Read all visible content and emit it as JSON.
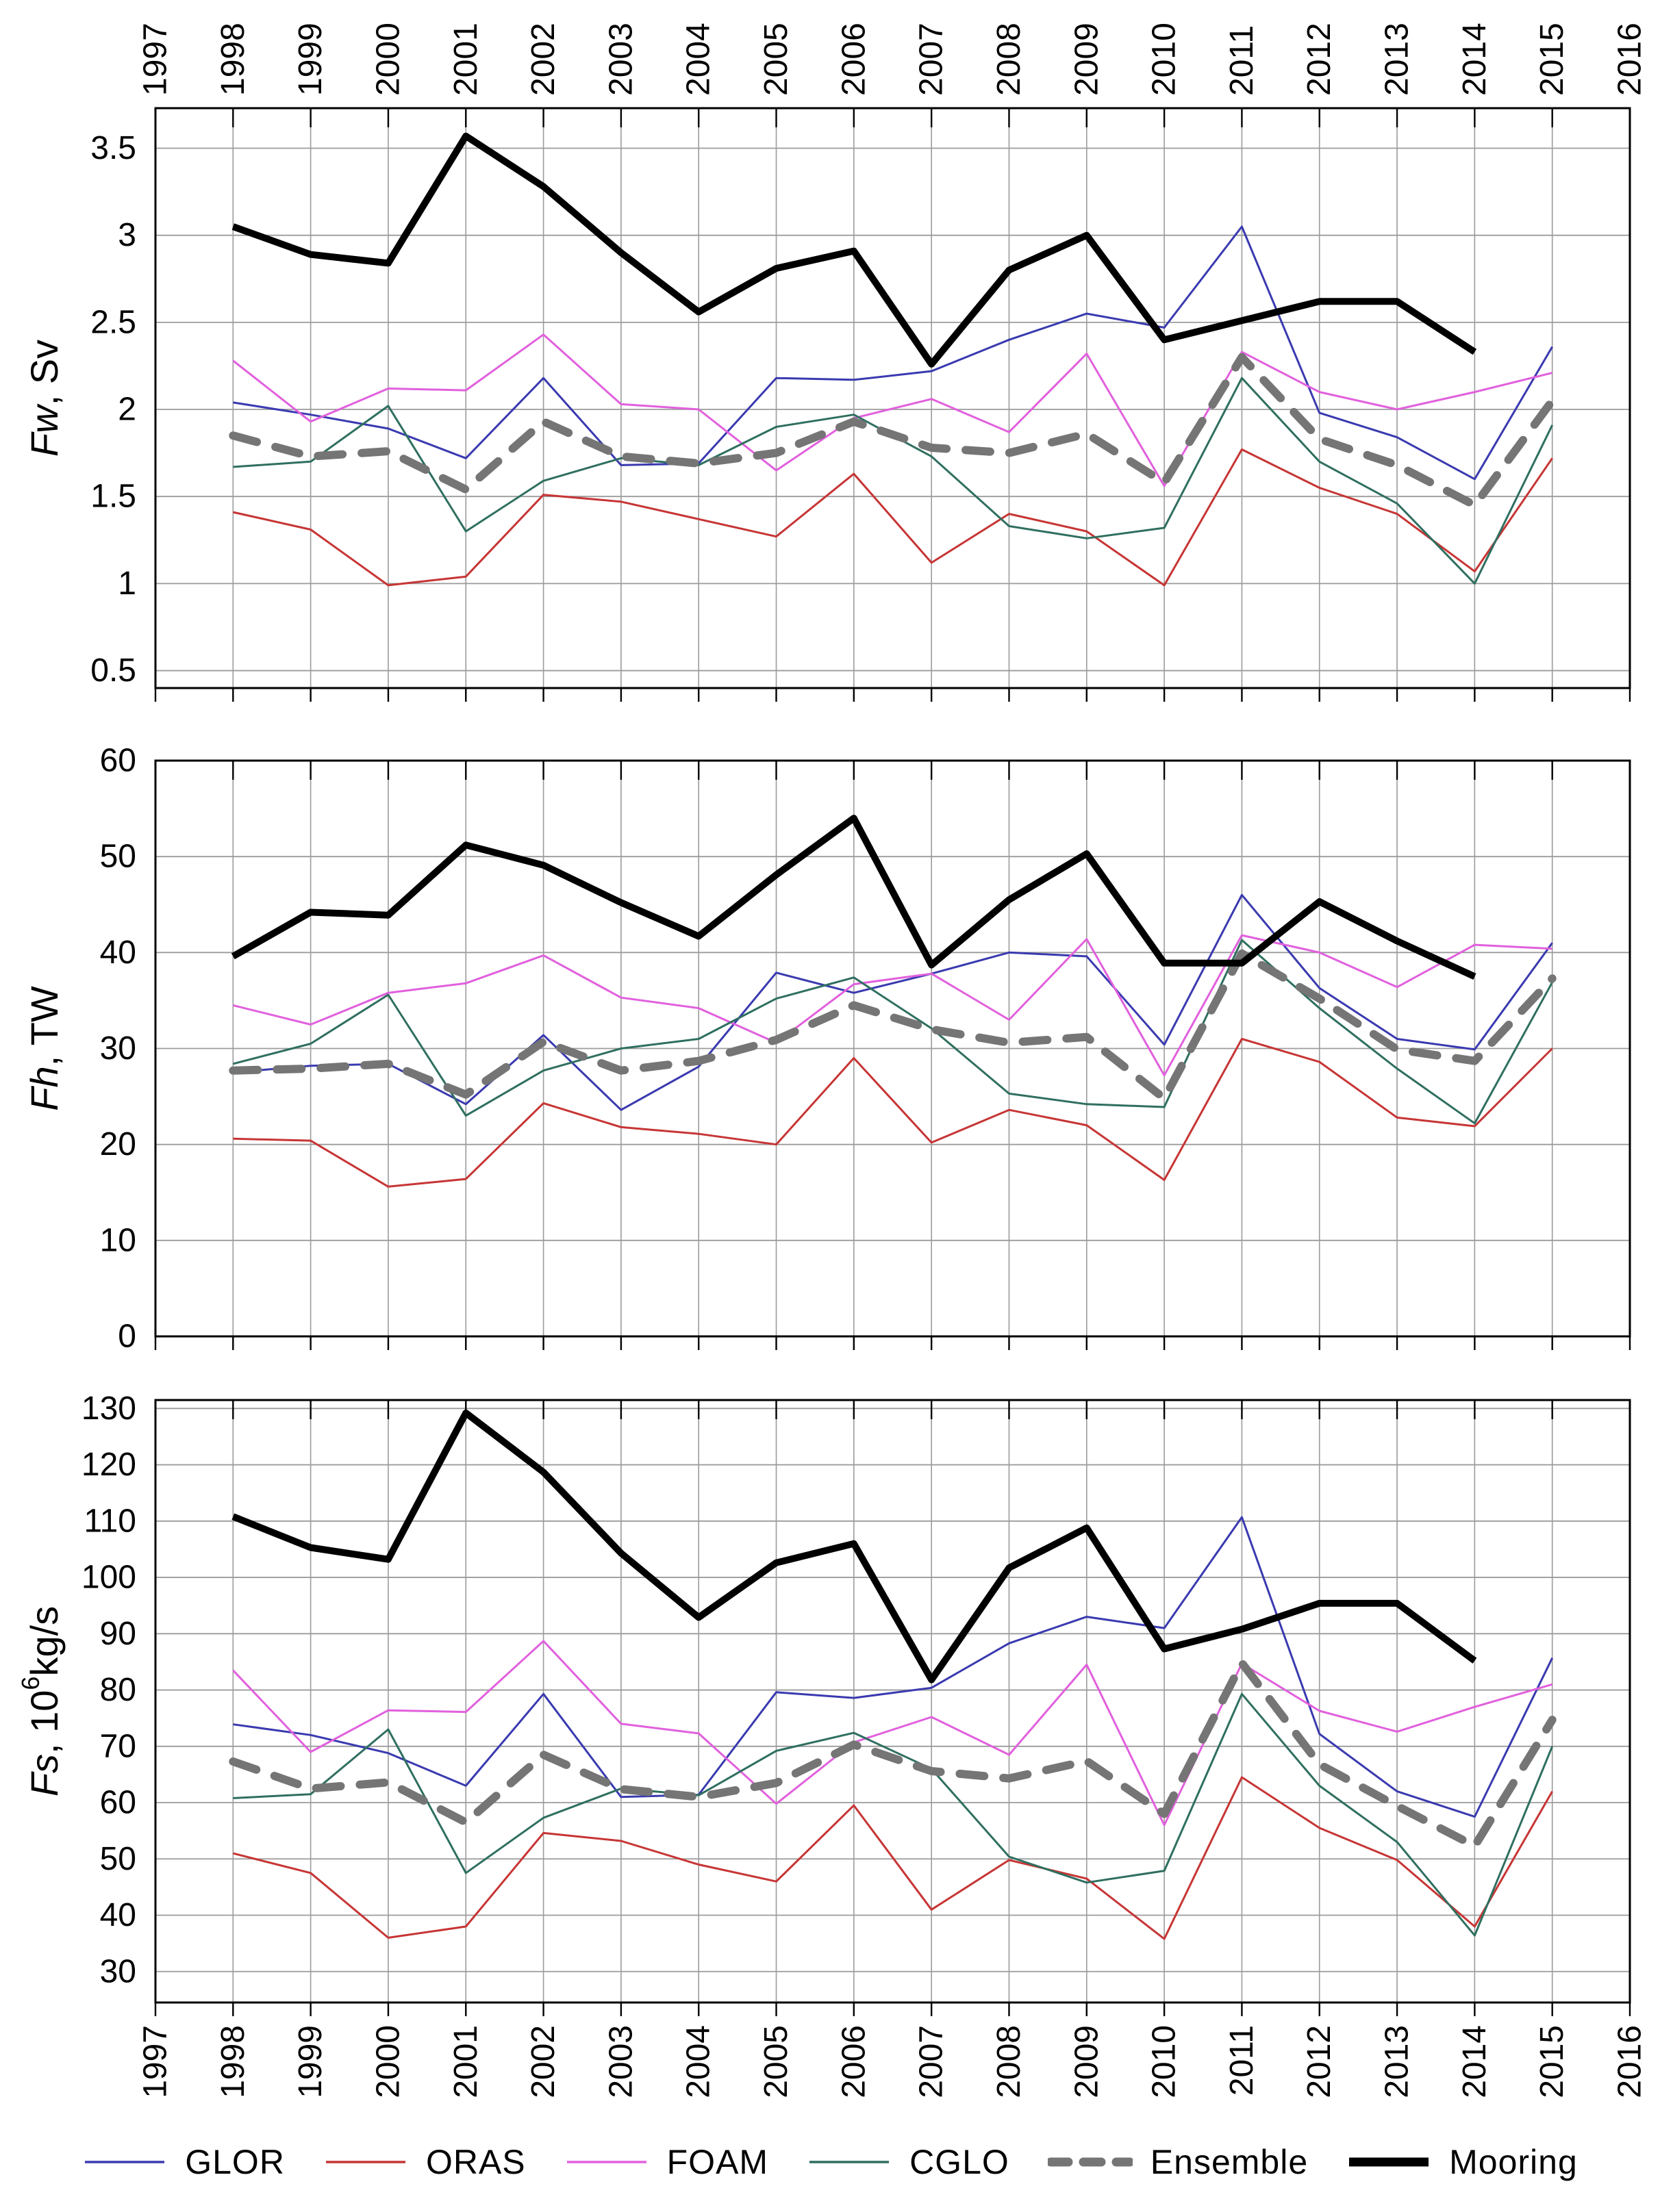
{
  "top_axis": {
    "years": [
      "1997",
      "1998",
      "1999",
      "2000",
      "2001",
      "2002",
      "2003",
      "2004",
      "2005",
      "2006",
      "2007",
      "2008",
      "2009",
      "2010",
      "2011",
      "2012",
      "2013",
      "2014",
      "2015",
      "2016"
    ]
  },
  "bottom_axis": {
    "years": [
      "1997",
      "1998",
      "1999",
      "2000",
      "2001",
      "2002",
      "2003",
      "2004",
      "2005",
      "2006",
      "2007",
      "2008",
      "2009",
      "2010",
      "2011",
      "2012",
      "2013",
      "2014",
      "2015",
      "2016"
    ]
  },
  "legend": {
    "entries": [
      {
        "id": "glor",
        "label": "GLOR",
        "color": "#3a3ab0",
        "style": "thin"
      },
      {
        "id": "oras",
        "label": "ORAS",
        "color": "#c73535",
        "style": "thin"
      },
      {
        "id": "foam",
        "label": "FOAM",
        "color": "#e160dd",
        "style": "thin"
      },
      {
        "id": "cglo",
        "label": "CGLO",
        "color": "#2f6f60",
        "style": "thin"
      },
      {
        "id": "ensemble",
        "label": "Ensemble",
        "color": "#757575",
        "style": "dashed"
      },
      {
        "id": "mooring",
        "label": "Mooring",
        "color": "#000000",
        "style": "thick"
      }
    ]
  },
  "chart_data": [
    {
      "type": "line",
      "title": "",
      "ylabel": "Fw, Sv",
      "ylabel_italic": "Fw",
      "ylabel_rest": ", Sv",
      "ylabel_sup": "",
      "ylabel_rest2": "",
      "ylim": [
        0.4,
        3.73
      ],
      "ytick_labels": [
        "0.5",
        "1",
        "1.5",
        "2",
        "2.5",
        "3",
        "3.5"
      ],
      "yticks": [
        0.5,
        1,
        1.5,
        2,
        2.5,
        3,
        3.5
      ],
      "x": [
        1998,
        1999,
        2000,
        2001,
        2002,
        2003,
        2004,
        2005,
        2006,
        2007,
        2008,
        2009,
        2010,
        2011,
        2012,
        2013,
        2014,
        2015
      ],
      "grid": true,
      "series": [
        {
          "name": "GLOR",
          "values": [
            2.04,
            1.97,
            1.89,
            1.72,
            2.18,
            1.68,
            1.69,
            2.18,
            2.17,
            2.22,
            2.4,
            2.55,
            2.47,
            3.05,
            1.98,
            1.84,
            1.6,
            2.36
          ]
        },
        {
          "name": "ORAS",
          "values": [
            1.41,
            1.31,
            0.99,
            1.04,
            1.51,
            1.47,
            1.37,
            1.27,
            1.63,
            1.12,
            1.4,
            1.3,
            0.99,
            1.77,
            1.55,
            1.4,
            1.07,
            1.72
          ]
        },
        {
          "name": "FOAM",
          "values": [
            2.28,
            1.93,
            2.12,
            2.11,
            2.43,
            2.03,
            2.0,
            1.65,
            1.95,
            2.06,
            1.87,
            2.32,
            1.56,
            2.33,
            2.1,
            2.0,
            2.1,
            2.21
          ]
        },
        {
          "name": "CGLO",
          "values": [
            1.67,
            1.7,
            2.02,
            1.3,
            1.59,
            1.72,
            1.68,
            1.9,
            1.97,
            1.73,
            1.33,
            1.26,
            1.32,
            2.18,
            1.7,
            1.46,
            1.0,
            1.91
          ]
        },
        {
          "name": "Ensemble",
          "values": [
            1.85,
            1.73,
            1.76,
            1.54,
            1.93,
            1.73,
            1.69,
            1.75,
            1.93,
            1.78,
            1.75,
            1.86,
            1.58,
            2.3,
            1.83,
            1.68,
            1.45,
            2.05
          ]
        },
        {
          "name": "Mooring",
          "values": [
            3.05,
            2.89,
            2.84,
            3.57,
            3.28,
            2.9,
            2.56,
            2.81,
            2.91,
            2.26,
            2.8,
            3.0,
            2.4,
            2.51,
            2.62,
            2.62,
            2.33,
            null
          ]
        }
      ]
    },
    {
      "type": "line",
      "title": "",
      "ylabel": "Fh, TW",
      "ylabel_italic": "Fh",
      "ylabel_rest": ", TW",
      "ylabel_sup": "",
      "ylabel_rest2": "",
      "ylim": [
        0,
        60
      ],
      "ytick_labels": [
        "0",
        "10",
        "20",
        "30",
        "40",
        "50",
        "60"
      ],
      "yticks": [
        0,
        10,
        20,
        30,
        40,
        50,
        60
      ],
      "x": [
        1998,
        1999,
        2000,
        2001,
        2002,
        2003,
        2004,
        2005,
        2006,
        2007,
        2008,
        2009,
        2010,
        2011,
        2012,
        2013,
        2014,
        2015
      ],
      "grid": true,
      "series": [
        {
          "name": "GLOR",
          "values": [
            27.5,
            28.2,
            28.4,
            24.2,
            31.4,
            23.6,
            28.1,
            37.9,
            35.8,
            37.8,
            40.0,
            39.6,
            30.4,
            46.0,
            36.3,
            31.0,
            29.9,
            41.0
          ]
        },
        {
          "name": "ORAS",
          "values": [
            20.6,
            20.4,
            15.6,
            16.4,
            24.3,
            21.8,
            21.1,
            20.0,
            29.0,
            20.2,
            23.6,
            22.0,
            16.3,
            31.0,
            28.6,
            22.8,
            21.9,
            30.0
          ]
        },
        {
          "name": "FOAM",
          "values": [
            34.5,
            32.5,
            35.8,
            36.8,
            39.7,
            35.3,
            34.2,
            30.6,
            36.7,
            37.8,
            33.0,
            41.4,
            27.2,
            41.8,
            40.0,
            36.4,
            40.8,
            40.4
          ]
        },
        {
          "name": "CGLO",
          "values": [
            28.4,
            30.5,
            35.6,
            23.0,
            27.7,
            30.0,
            31.0,
            35.2,
            37.4,
            32.1,
            25.3,
            24.2,
            23.9,
            41.3,
            34.2,
            27.9,
            22.2,
            36.9
          ]
        },
        {
          "name": "Ensemble",
          "values": [
            27.7,
            27.9,
            28.4,
            25.2,
            30.7,
            27.7,
            28.7,
            30.9,
            34.5,
            32.0,
            30.6,
            31.2,
            24.8,
            39.9,
            35.2,
            29.9,
            28.7,
            37.3
          ]
        },
        {
          "name": "Mooring",
          "values": [
            39.6,
            44.2,
            43.9,
            51.2,
            49.1,
            45.2,
            41.7,
            48.1,
            54.0,
            38.7,
            45.5,
            50.3,
            38.9,
            38.9,
            45.3,
            41.2,
            37.5,
            null
          ]
        }
      ]
    },
    {
      "type": "line",
      "title": "",
      "ylabel": "Fs, 10⁶kg/s",
      "ylabel_italic": "Fs",
      "ylabel_rest": ", 10",
      "ylabel_sup": "6",
      "ylabel_rest2": "kg/s",
      "ylim": [
        24.5,
        131.5
      ],
      "ytick_labels": [
        "30",
        "40",
        "50",
        "60",
        "70",
        "80",
        "90",
        "100",
        "110",
        "120",
        "130"
      ],
      "yticks": [
        30,
        40,
        50,
        60,
        70,
        80,
        90,
        100,
        110,
        120,
        130
      ],
      "x": [
        1998,
        1999,
        2000,
        2001,
        2002,
        2003,
        2004,
        2005,
        2006,
        2007,
        2008,
        2009,
        2010,
        2011,
        2012,
        2013,
        2014,
        2015
      ],
      "grid": true,
      "series": [
        {
          "name": "GLOR",
          "values": [
            73.9,
            72.0,
            68.8,
            63.0,
            79.3,
            61.0,
            61.4,
            79.6,
            78.6,
            80.4,
            88.3,
            93.0,
            91.0,
            110.7,
            72.2,
            62.0,
            57.5,
            85.7
          ]
        },
        {
          "name": "ORAS",
          "values": [
            51.0,
            47.5,
            36.0,
            38.0,
            54.6,
            53.2,
            49.0,
            46.0,
            59.5,
            41.0,
            49.8,
            46.5,
            35.8,
            64.5,
            55.5,
            49.8,
            38.0,
            62.0
          ]
        },
        {
          "name": "FOAM",
          "values": [
            83.5,
            69.0,
            76.4,
            76.1,
            88.7,
            74.0,
            72.3,
            59.8,
            70.7,
            75.2,
            68.5,
            84.5,
            56.0,
            84.7,
            76.3,
            72.6,
            77.0,
            81.0
          ]
        },
        {
          "name": "CGLO",
          "values": [
            60.8,
            61.5,
            73.0,
            47.5,
            57.3,
            62.5,
            61.3,
            69.2,
            72.4,
            66.0,
            50.4,
            45.8,
            47.9,
            79.3,
            63.0,
            53.0,
            36.4,
            70.0
          ]
        },
        {
          "name": "Ensemble",
          "values": [
            67.3,
            62.5,
            63.6,
            56.5,
            68.5,
            62.4,
            61.0,
            63.5,
            70.3,
            65.6,
            64.3,
            67.4,
            58.0,
            84.8,
            66.8,
            59.4,
            52.3,
            74.7
          ]
        },
        {
          "name": "Mooring",
          "values": [
            110.8,
            105.3,
            103.2,
            129.2,
            118.7,
            104.3,
            92.9,
            102.6,
            106.0,
            81.8,
            101.7,
            108.8,
            87.3,
            90.8,
            95.4,
            95.4,
            85.2,
            null
          ]
        }
      ]
    }
  ]
}
